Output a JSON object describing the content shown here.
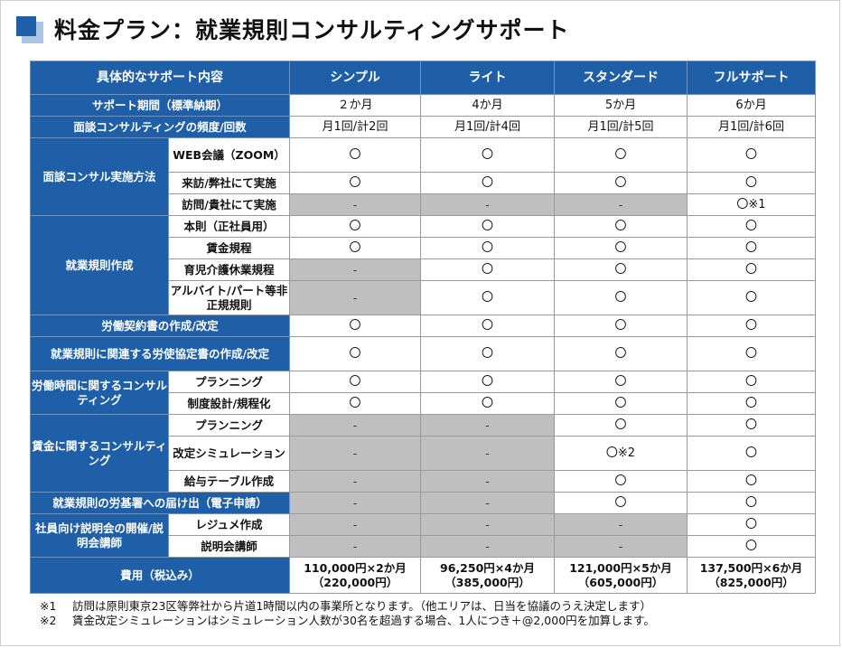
{
  "title": "料金プラン：就業規則コンサルティングサポート",
  "header": {
    "category": "具体的なサポート内容",
    "plans": [
      "シンプル",
      "ライト",
      "スタンダード",
      "フルサポート"
    ]
  },
  "rows": {
    "period": {
      "label": "サポート期間（標準納期）",
      "values": [
        "２か月",
        "4か月",
        "5か月",
        "6か月"
      ]
    },
    "frequency": {
      "label": "面談コンサルティングの頻度/回数",
      "values": [
        "月1回/計2回",
        "月1回/計4回",
        "月1回/計5回",
        "月1回/計6回"
      ]
    },
    "method": {
      "label": "面談コンサル実施方法",
      "items": [
        {
          "label": "WEB会議（ZOOM）",
          "values": [
            "〇",
            "〇",
            "〇",
            "〇"
          ]
        },
        {
          "label": "来訪/弊社にて実施",
          "values": [
            "〇",
            "〇",
            "〇",
            "〇"
          ]
        },
        {
          "label": "訪問/貴社にて実施",
          "values": [
            "-",
            "-",
            "-",
            "〇※1"
          ]
        }
      ]
    },
    "rules": {
      "label": "就業規則作成",
      "items": [
        {
          "label": "本則（正社員用）",
          "values": [
            "〇",
            "〇",
            "〇",
            "〇"
          ]
        },
        {
          "label": "賃金規程",
          "values": [
            "〇",
            "〇",
            "〇",
            "〇"
          ]
        },
        {
          "label": "育児介護休業規程",
          "values": [
            "-",
            "〇",
            "〇",
            "〇"
          ]
        },
        {
          "label": "アルバイト/パート等非正規規則",
          "values": [
            "-",
            "〇",
            "〇",
            "〇"
          ]
        }
      ]
    },
    "contract": {
      "label": "労働契約書の作成/改定",
      "values": [
        "〇",
        "〇",
        "〇",
        "〇"
      ]
    },
    "labor_agreement": {
      "label": "就業規則に関連する労使協定書の作成/改定",
      "values": [
        "〇",
        "〇",
        "〇",
        "〇"
      ]
    },
    "working_hours": {
      "label": "労働時間に関するコンサルティング",
      "items": [
        {
          "label": "プランニング",
          "values": [
            "〇",
            "〇",
            "〇",
            "〇"
          ]
        },
        {
          "label": "制度設計/規程化",
          "values": [
            "〇",
            "〇",
            "〇",
            "〇"
          ]
        }
      ]
    },
    "wages": {
      "label": "賃金に関するコンサルティング",
      "items": [
        {
          "label": "プランニング",
          "values": [
            "-",
            "-",
            "〇",
            "〇"
          ]
        },
        {
          "label": "改定シミュレーション",
          "values": [
            "-",
            "-",
            "〇※2",
            "〇"
          ]
        },
        {
          "label": "給与テーブル作成",
          "values": [
            "-",
            "-",
            "〇",
            "〇"
          ]
        }
      ]
    },
    "filing": {
      "label": "就業規則の労基署への届け出（電子申請）",
      "values": [
        "-",
        "-",
        "〇",
        "〇"
      ]
    },
    "briefing": {
      "label": "社員向け説明会の開催/説明会講師",
      "items": [
        {
          "label": "レジュメ作成",
          "values": [
            "-",
            "-",
            "-",
            "〇"
          ]
        },
        {
          "label": "説明会講師",
          "values": [
            "-",
            "-",
            "-",
            "〇"
          ]
        }
      ]
    },
    "cost": {
      "label": "費用（税込み）",
      "values": [
        {
          "main": "110,000円×2か月",
          "total": "（220,000円）"
        },
        {
          "main": "96,250円×4か月",
          "total": "（385,000円）"
        },
        {
          "main": "121,000円×5か月",
          "total": "（605,000円）"
        },
        {
          "main": "137,500円×6か月",
          "total": "（825,000円）"
        }
      ]
    }
  },
  "notes": [
    {
      "mark": "※1",
      "text": "訪問は原則東京23区等弊社から片道1時間以内の事業所となります。（他エリアは、日当を協議のうえ決定します）"
    },
    {
      "mark": "※2",
      "text": "賃金改定シミュレーションはシミュレーション人数が30名を超過する場合、1人につき＋@2,000円を加算します。"
    }
  ],
  "colors": {
    "header_blue": "#1f5fa8",
    "gray_cell": "#bfbfbf",
    "icon_light": "#a9c6e6"
  }
}
